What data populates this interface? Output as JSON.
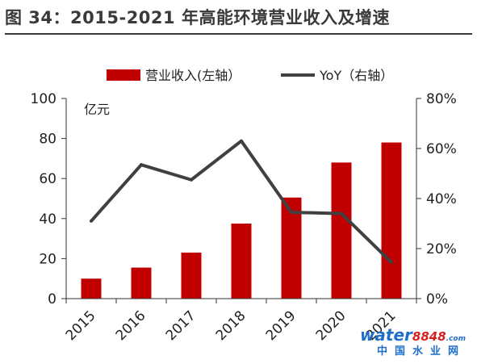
{
  "figure_title": "图 34：2015-2021 年高能环境营业收入及增速",
  "chart_data": {
    "type": "bar+line",
    "categories": [
      "2015",
      "2016",
      "2017",
      "2018",
      "2019",
      "2020",
      "2021"
    ],
    "series": [
      {
        "name": "营业收入(左轴）",
        "type": "bar",
        "axis": "left",
        "values": [
          10.0,
          15.5,
          23.0,
          37.5,
          50.5,
          68.0,
          78.0
        ],
        "color": "#c00000"
      },
      {
        "name": "YoY（右轴）",
        "type": "line",
        "axis": "right",
        "values": [
          31.0,
          53.5,
          47.5,
          63.0,
          34.5,
          34.0,
          14.5
        ],
        "color": "#404040"
      }
    ],
    "y_left": {
      "unit_label": "亿元",
      "ylim": [
        0,
        100
      ],
      "ticks": [
        0,
        20,
        40,
        60,
        80,
        100
      ]
    },
    "y_right": {
      "ylim": [
        0,
        80
      ],
      "ticks": [
        "0%",
        "20%",
        "40%",
        "60%",
        "80%"
      ]
    },
    "legend_position": "top-center",
    "grid": false
  },
  "watermark": {
    "brand": "water",
    "number": "8848",
    "suffix": ".com",
    "cn": "中国水业网"
  }
}
